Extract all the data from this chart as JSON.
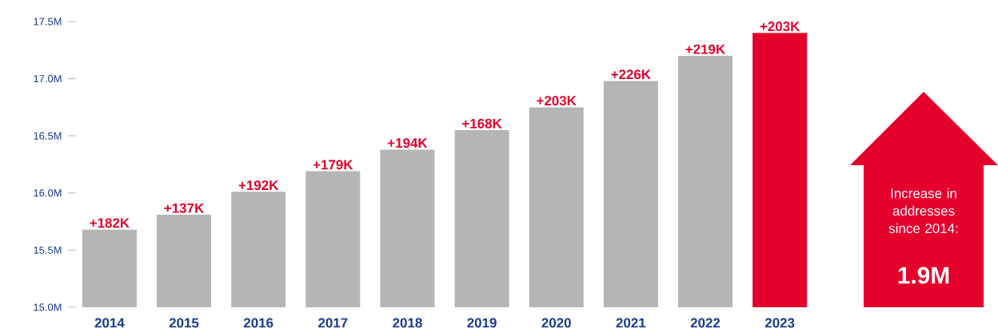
{
  "chart_data": {
    "type": "bar",
    "categories": [
      "2014",
      "2015",
      "2016",
      "2017",
      "2018",
      "2019",
      "2020",
      "2021",
      "2022",
      "2023"
    ],
    "values": [
      15.68,
      15.81,
      16.01,
      16.19,
      16.38,
      16.55,
      16.75,
      16.98,
      17.2,
      17.4
    ],
    "colors": [
      "#b5b5b5",
      "#b5b5b5",
      "#b5b5b5",
      "#b5b5b5",
      "#b5b5b5",
      "#b5b5b5",
      "#b5b5b5",
      "#b5b5b5",
      "#b5b5b5",
      "#e4002b"
    ],
    "ylim": [
      15.0,
      17.5
    ],
    "yticks": [
      {
        "value": 15.0,
        "label": "15.0M"
      },
      {
        "value": 15.5,
        "label": "15.5M"
      },
      {
        "value": 16.0,
        "label": "16.0M"
      },
      {
        "value": 16.5,
        "label": "16.5M"
      },
      {
        "value": 17.0,
        "label": "17.0M"
      },
      {
        "value": 17.5,
        "label": "17.5M"
      }
    ],
    "annotations": [
      {
        "text": "+182K",
        "x": "2014",
        "y": 15.68
      },
      {
        "text": "+137K",
        "x": "2015",
        "y": 15.81
      },
      {
        "text": "+192K",
        "x": "2016",
        "y": 16.01
      },
      {
        "text": "+179K",
        "x": "2017",
        "y": 16.19
      },
      {
        "text": "+194K",
        "x": "2018",
        "y": 16.38
      },
      {
        "text": "+168K",
        "x": "2019",
        "y": 16.55
      },
      {
        "text": "+203K",
        "x": "2020",
        "y": 16.75
      },
      {
        "text": "+226K",
        "x": "2021",
        "y": 16.98
      },
      {
        "text": "+219K",
        "x": "2022",
        "y": 17.2
      },
      {
        "text": "+203K",
        "x": "2023",
        "y": 17.4
      },
      "Increase in addresses since 2014:",
      "1.9M"
    ]
  }
}
